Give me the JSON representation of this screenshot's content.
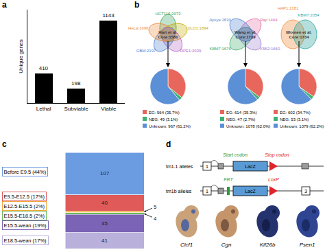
{
  "panel_labels": [
    "a",
    "b",
    "c",
    "d"
  ],
  "chart_data": [
    {
      "type": "bar",
      "y_label": "Unique genes",
      "categories": [
        "Lethal",
        "Subviable",
        "Viable"
      ],
      "values": [
        410,
        198,
        1143
      ],
      "color": "#000000",
      "ylim": [
        0,
        1300
      ],
      "data_labels": true,
      "tick_labels": "x",
      "grid": false
    },
    {
      "type": "pie",
      "values": [
        564,
        49,
        967
      ],
      "value_labels": [
        "EG: 564 (35.7%)",
        "NEG: 49 (3.1%)",
        "Unknown: 967 (61.2%)"
      ],
      "colors": [
        "#e8675c",
        "#3bb273",
        "#5b8fd6"
      ],
      "legend": "bottom"
    },
    {
      "type": "pie",
      "values": [
        614,
        47,
        1078
      ],
      "value_labels": [
        "EG: 614 (35.3%)",
        "NEG: 47 (2.7%)",
        "Unknown: 1078 (62.0%)"
      ],
      "colors": [
        "#e8675c",
        "#3bb273",
        "#5b8fd6"
      ],
      "legend": "bottom"
    },
    {
      "type": "pie",
      "values": [
        602,
        53,
        1079
      ],
      "value_labels": [
        "EG: 602 (34.7%)",
        "NEG: 53 (3.1%)",
        "Unknown: 1079 (62.2%)"
      ],
      "colors": [
        "#e8675c",
        "#3bb273",
        "#5b8fd6"
      ],
      "legend": "bottom"
    },
    {
      "type": "bar",
      "stacked": true,
      "categories": [
        null
      ],
      "ylim": [
        242,
        0
      ],
      "data_labels": true,
      "tick_labels": false,
      "series": [
        {
          "name": "Before E9.5 (44%)",
          "color": "#6b9be0",
          "values": [
            107
          ]
        },
        {
          "name": "E9.5-E12.5 (17%)",
          "color": "#e05a5a",
          "values": [
            40
          ]
        },
        {
          "name": "E12.5-E15.5 (2%)",
          "color": "#f2a93b",
          "values": [
            5
          ]
        },
        {
          "name": "E15.5-E18.5 (2%)",
          "color": "#6fb85a",
          "values": [
            4
          ]
        },
        {
          "name": "E15.5-wean (19%)",
          "color": "#7b63b5",
          "values": [
            45
          ]
        },
        {
          "name": "E18.5-wean (17%)",
          "color": "#b9b0dc",
          "values": [
            41
          ]
        }
      ]
    }
  ],
  "venn_diagrams": [
    {
      "name": "Hart et al.",
      "core": "Core:1580",
      "sets": [
        {
          "label": "HCT116:2073",
          "color": "#2e9e5a"
        },
        {
          "label": "DLD1:1894",
          "color": "#c2ad00"
        },
        {
          "label": "RPE1:2039",
          "color": "#b565c5"
        },
        {
          "label": "GBM:2197",
          "color": "#4a7fd0"
        },
        {
          "label": "HeLa:1696",
          "color": "#f08a3c"
        }
      ]
    },
    {
      "name": "Wang et al.",
      "core": "Core:1739",
      "sets": [
        {
          "label": "Raji:1464",
          "color": "#e06aa0"
        },
        {
          "label": "K562:1660",
          "color": "#9a7ad0"
        },
        {
          "label": "KBM7:1676",
          "color": "#3aaa6a"
        },
        {
          "label": "Jiyoye:1630",
          "color": "#4a7fd0"
        }
      ]
    },
    {
      "name": "Blomen et al.",
      "core": "Core:1734",
      "sets": [
        {
          "label": "HAP1:2181",
          "color": "#f08a3c"
        },
        {
          "label": "KBM7:2054",
          "color": "#2aa39a"
        }
      ]
    }
  ],
  "allele_diagram": {
    "alleles": [
      {
        "label": "tm1.1 alleles",
        "exons": [
          "1"
        ]
      },
      {
        "label": "tm1b alleles",
        "exons": [
          "1",
          "3"
        ]
      }
    ],
    "start_codon": "Start codon",
    "stop_codon": "Stop codon",
    "loxp": "LoxP",
    "frt": "FRT",
    "cassette": "LacZ"
  },
  "embryo_images": {
    "genes": [
      "Clcf1",
      "Cgn",
      "Kif26b",
      "Psen1"
    ]
  }
}
